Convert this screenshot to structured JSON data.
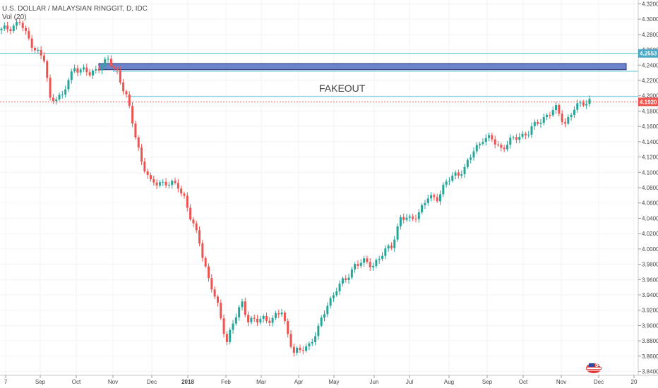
{
  "header": {
    "symbol_line": "U.S. DOLLAR / MALAYSIAN RINGGIT, D, IDC",
    "volume_label": "Vol (20)"
  },
  "colors": {
    "up": "#26a69a",
    "down": "#ef5350",
    "resistance_line": "#5bc8d8",
    "zone_fill": "#6b83c8",
    "zone_border": "#1f2f78",
    "current_price": "#ef5350",
    "badge_price": "#ef5350",
    "badge_level": "#4aa7c4"
  },
  "logo_icon": "tradingview-flag-icon",
  "chart_data": {
    "type": "candlestick",
    "ylim": [
      3.835,
      4.325
    ],
    "y_ticks": [
      "4.3200",
      "4.3000",
      "4.2800",
      "4.2600",
      "4.2400",
      "4.2200",
      "4.2000",
      "4.1800",
      "4.1600",
      "4.1400",
      "4.1200",
      "4.1000",
      "4.0800",
      "4.0600",
      "4.0400",
      "4.0200",
      "4.0000",
      "3.9800",
      "3.9600",
      "3.9400",
      "3.9200",
      "3.9000",
      "3.8800",
      "3.8600",
      "3.8400"
    ],
    "x_ticks": [
      "7",
      "Sep",
      "Oct",
      "Nov",
      "Dec",
      "2018",
      "Feb",
      "Mar",
      "Apr",
      "May",
      "Jun",
      "Jul",
      "Aug",
      "Sep",
      "Oct",
      "Nov",
      "Dec",
      "20"
    ],
    "annotation": "FAKEOUT",
    "price_badges": [
      {
        "label": "4.2553",
        "value": 4.2553,
        "kind": "level"
      },
      {
        "label": "4.1920",
        "value": 4.192,
        "kind": "price"
      }
    ],
    "horizontal_levels": [
      4.2553,
      4.232,
      4.199
    ],
    "current_price": 4.192,
    "supply_zone": {
      "top": 4.242,
      "bottom": 4.234
    },
    "price_path": [
      [
        0,
        4.285
      ],
      [
        3,
        4.29
      ],
      [
        6,
        4.296
      ],
      [
        8,
        4.28
      ],
      [
        11,
        4.262
      ],
      [
        14,
        4.246
      ],
      [
        16,
        4.195
      ],
      [
        18,
        4.2
      ],
      [
        20,
        4.198
      ],
      [
        22,
        4.22
      ],
      [
        24,
        4.238
      ],
      [
        27,
        4.232
      ],
      [
        29,
        4.228
      ],
      [
        32,
        4.238
      ],
      [
        35,
        4.245
      ],
      [
        38,
        4.232
      ],
      [
        41,
        4.198
      ],
      [
        43,
        4.165
      ],
      [
        46,
        4.115
      ],
      [
        49,
        4.085
      ],
      [
        52,
        4.088
      ],
      [
        55,
        4.084
      ],
      [
        58,
        4.083
      ],
      [
        60,
        4.068
      ],
      [
        62,
        4.04
      ],
      [
        65,
        4.01
      ],
      [
        68,
        3.96
      ],
      [
        71,
        3.925
      ],
      [
        74,
        3.88
      ],
      [
        76,
        3.902
      ],
      [
        79,
        3.93
      ],
      [
        81,
        3.908
      ],
      [
        84,
        3.905
      ],
      [
        86,
        3.91
      ],
      [
        89,
        3.908
      ],
      [
        92,
        3.918
      ],
      [
        94,
        3.89
      ],
      [
        96,
        3.865
      ],
      [
        98,
        3.866
      ],
      [
        101,
        3.876
      ],
      [
        104,
        3.895
      ],
      [
        107,
        3.928
      ],
      [
        110,
        3.948
      ],
      [
        113,
        3.96
      ],
      [
        116,
        3.98
      ],
      [
        119,
        3.982
      ],
      [
        122,
        3.98
      ],
      [
        125,
        3.992
      ],
      [
        128,
        4.005
      ],
      [
        131,
        4.04
      ],
      [
        134,
        4.038
      ],
      [
        137,
        4.048
      ],
      [
        140,
        4.066
      ],
      [
        143,
        4.068
      ],
      [
        146,
        4.086
      ],
      [
        149,
        4.098
      ],
      [
        152,
        4.104
      ],
      [
        155,
        4.128
      ],
      [
        158,
        4.145
      ],
      [
        161,
        4.142
      ],
      [
        164,
        4.132
      ],
      [
        167,
        4.14
      ],
      [
        170,
        4.148
      ],
      [
        173,
        4.152
      ],
      [
        176,
        4.165
      ],
      [
        179,
        4.175
      ],
      [
        182,
        4.182
      ],
      [
        185,
        4.165
      ],
      [
        188,
        4.182
      ],
      [
        191,
        4.192
      ],
      [
        193,
        4.194
      ]
    ],
    "grid": true
  }
}
